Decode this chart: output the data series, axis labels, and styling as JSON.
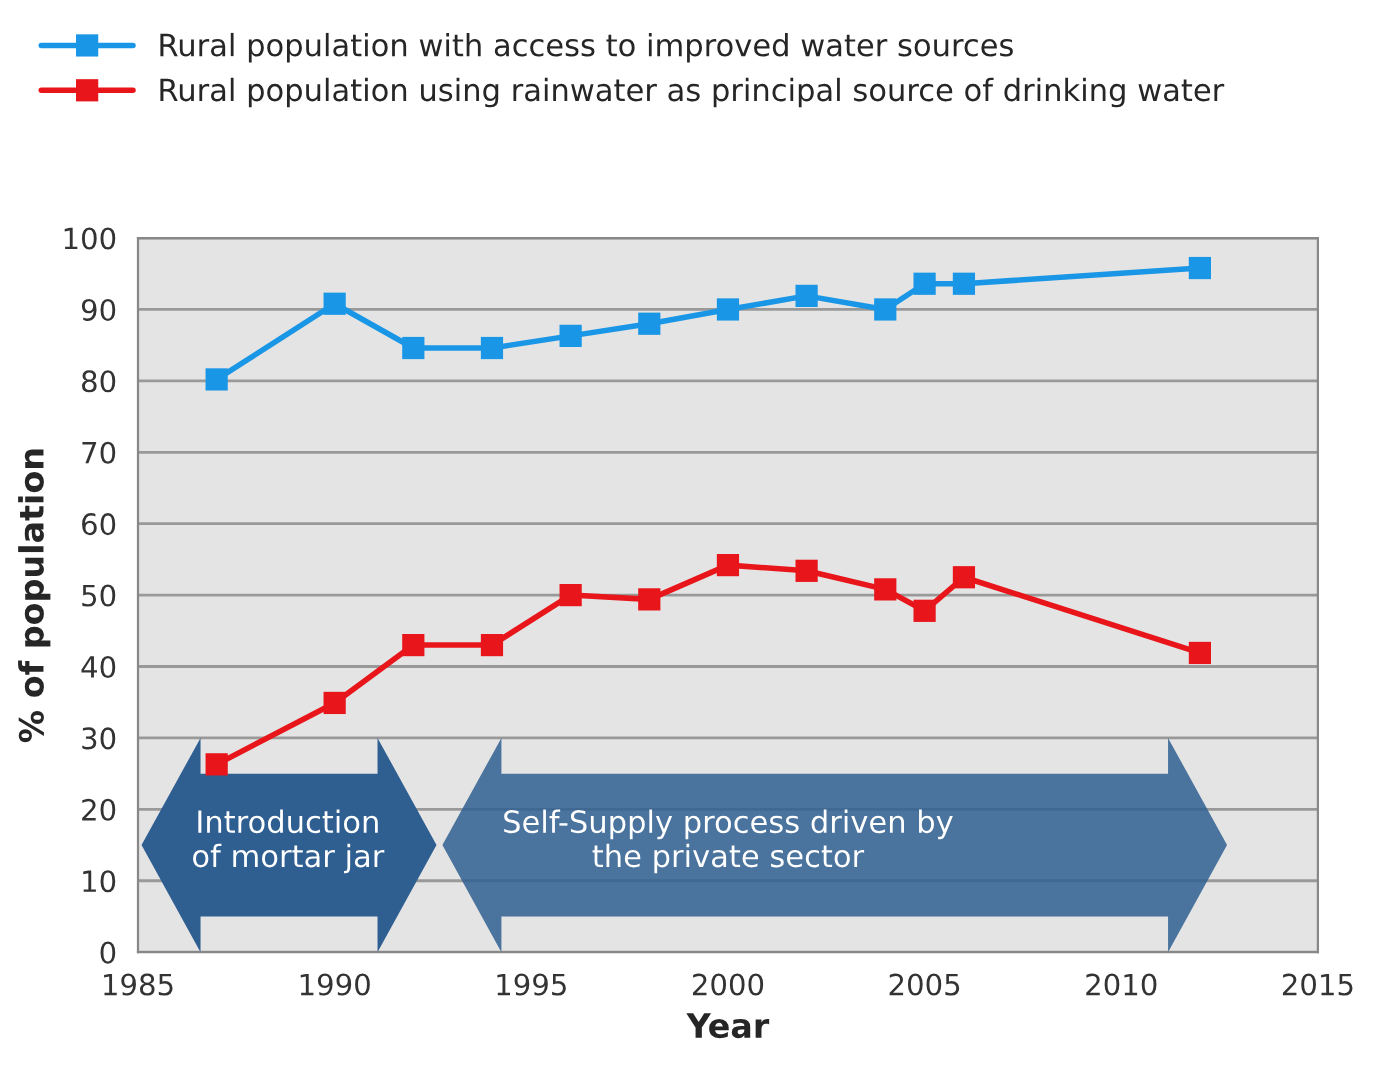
{
  "chart_data": {
    "type": "line",
    "xlabel": "Year",
    "ylabel": "% of population",
    "x": [
      1987,
      1990,
      1992,
      1994,
      1996,
      1998,
      2000,
      2002,
      2004,
      2005,
      2006,
      2012
    ],
    "series": [
      {
        "name": "Rural population with access to improved water sources",
        "color": "#1a96e6",
        "values": [
          80.2,
          90.8,
          84.6,
          84.6,
          86.3,
          88,
          90,
          91.9,
          90,
          93.6,
          93.6,
          95.8
        ]
      },
      {
        "name": "Rural population using rainwater as principal source of drinking water",
        "color": "#e8161b",
        "values": [
          26.3,
          34.9,
          43,
          43,
          50,
          49.4,
          54.2,
          53.4,
          50.8,
          47.8,
          52.5,
          41.9
        ]
      }
    ],
    "xlim": [
      1985,
      2015
    ],
    "xticks": [
      1985,
      1990,
      1995,
      2000,
      2005,
      2010,
      2015
    ],
    "ylim": [
      0,
      100
    ],
    "yticks": [
      0,
      10,
      20,
      30,
      40,
      50,
      60,
      70,
      80,
      90,
      100
    ],
    "grid": "y",
    "legend": "top left",
    "marker": "square",
    "line_style": "solid",
    "annotations": [
      "Introduction\nof mortar jar",
      "Self-Supply process driven by\nthe private sector"
    ]
  }
}
